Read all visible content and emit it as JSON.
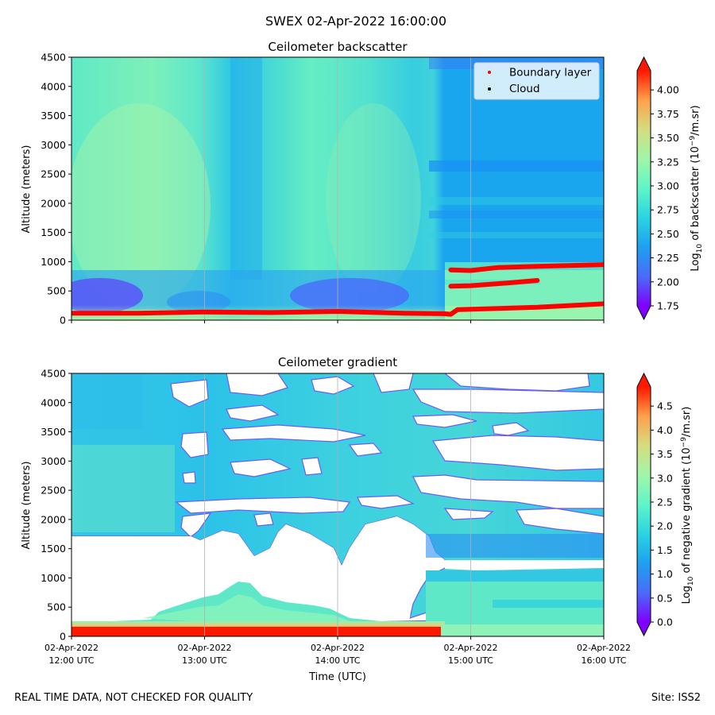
{
  "figure": {
    "suptitle": "SWEX 02-Apr-2022 16:00:00",
    "footer_left": "REAL TIME DATA, NOT CHECKED FOR QUALITY",
    "footer_right": "Site: ISS2"
  },
  "chart_data": [
    {
      "type": "heatmap",
      "title": "Ceilometer backscatter",
      "ylabel": "Altitude (meters)",
      "xlabel": "",
      "ylim": [
        0,
        4500
      ],
      "yticks": [
        0,
        500,
        1000,
        1500,
        2000,
        2500,
        3000,
        3500,
        4000,
        4500
      ],
      "xlim_hours": [
        12,
        16
      ],
      "grid": "vertical",
      "colorbar": {
        "label_prefix": "Log",
        "label_sub": "10",
        "label_middle": " of backscatter (10",
        "label_sup": "−9",
        "label_suffix": "/m.sr)",
        "range": [
          1.75,
          4.2
        ],
        "ticks": [
          "1.75",
          "2.00",
          "2.25",
          "2.50",
          "2.75",
          "3.00",
          "3.25",
          "3.50",
          "3.75",
          "4.00"
        ],
        "extend": "both"
      },
      "legend": {
        "placement": "upper-right",
        "entries": [
          {
            "name": "Boundary layer",
            "color": "#ff0000"
          },
          {
            "name": "Cloud",
            "color": "#000000"
          }
        ]
      },
      "series": [
        {
          "name": "Boundary layer",
          "segments": [
            {
              "points": [
                [
                  12.0,
                  120
                ],
                [
                  12.5,
                  120
                ],
                [
                  13.0,
                  140
                ],
                [
                  13.5,
                  130
                ],
                [
                  14.0,
                  150
                ],
                [
                  14.5,
                  120
                ],
                [
                  14.8,
                  110
                ],
                [
                  14.85,
                  100
                ],
                [
                  14.9,
                  180
                ],
                [
                  15.5,
                  220
                ],
                [
                  16.0,
                  280
                ]
              ]
            },
            {
              "points": [
                [
                  14.85,
                  860
                ],
                [
                  15.0,
                  850
                ],
                [
                  15.2,
                  900
                ],
                [
                  15.5,
                  920
                ],
                [
                  16.0,
                  950
                ]
              ]
            },
            {
              "points": [
                [
                  14.85,
                  580
                ],
                [
                  15.0,
                  590
                ],
                [
                  15.3,
                  640
                ],
                [
                  15.5,
                  680
                ]
              ]
            }
          ]
        }
      ]
    },
    {
      "type": "heatmap",
      "title": "Ceilometer gradient",
      "ylabel": "Altitude (meters)",
      "xlabel": "Time (UTC)",
      "ylim": [
        0,
        4500
      ],
      "yticks": [
        0,
        500,
        1000,
        1500,
        2000,
        2500,
        3000,
        3500,
        4000,
        4500
      ],
      "xlim_hours": [
        12,
        16
      ],
      "xticks": [
        {
          "hour": 12,
          "line1": "02-Apr-2022",
          "line2": "12:00 UTC"
        },
        {
          "hour": 13,
          "line1": "02-Apr-2022",
          "line2": "13:00 UTC"
        },
        {
          "hour": 14,
          "line1": "02-Apr-2022",
          "line2": "14:00 UTC"
        },
        {
          "hour": 15,
          "line1": "02-Apr-2022",
          "line2": "15:00 UTC"
        },
        {
          "hour": 16,
          "line1": "02-Apr-2022",
          "line2": "16:00 UTC"
        }
      ],
      "grid": "vertical",
      "colorbar": {
        "label_prefix": "Log",
        "label_sub": "10",
        "label_middle": " of negative gradient (10",
        "label_sup": "−9",
        "label_suffix": "/m.sr)",
        "range": [
          0.0,
          4.9
        ],
        "ticks": [
          "0.0",
          "0.5",
          "1.0",
          "1.5",
          "2.0",
          "2.5",
          "3.0",
          "3.5",
          "4.0",
          "4.5"
        ],
        "extend": "both"
      }
    }
  ]
}
